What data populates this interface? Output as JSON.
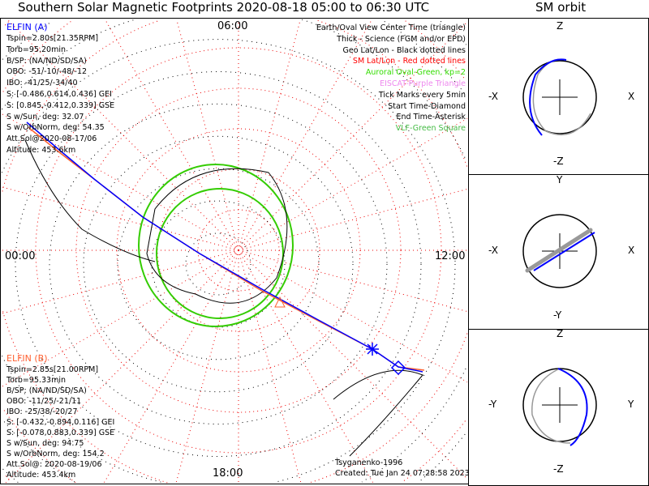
{
  "title": "Southern Solar Magnetic Footprints 2020-08-18 05:00 to 06:30 UTC",
  "orbit_title": "SM orbit",
  "map": {
    "time_top": "06:00",
    "time_left": "00:00",
    "time_right": "12:00",
    "time_bottom": "18:00"
  },
  "elfin_a": {
    "name": "ELFIN (A)",
    "color": "#0000ff",
    "lines": [
      "Tspin=2.80s[21.35RPM]",
      "Torb=95.20min",
      "B/SP: (NA/ND/SD/SA)",
      "OBO: -51/-10/-48/-12",
      "IBO: -41/25/-34/40",
      "S: [-0.486,0.614,0.436] GEI",
      "S: [0.845,-0.412,0.339] GSE",
      "S w/Sun, deg: 32.07",
      "S w/OrbNorm, deg: 54.35",
      "Att.Sol@2020-08-17/06",
      "Altitude: 453.6km"
    ]
  },
  "elfin_b": {
    "name": "ELFIN (B)",
    "color": "#ff6030",
    "lines": [
      "Tspin=2.85s[21.00RPM]",
      "Torb=95.33min",
      "B/SP: (NA/ND/SD/SA)",
      "OBO: -11/25/-21/11",
      "IBO: -25/38/-20/27",
      "S: [-0.432,-0.894,0.116] GEI",
      "S: [-0.078,0.883,0.339] GSE",
      "S w/Sun, deg: 94.75",
      "S w/OrbNorm, deg: 154.2",
      "Att.Sol@: 2020-08-19/06",
      "Altitude: 453.4km"
    ]
  },
  "legend": [
    {
      "text": "Earth/Oval View Center Time (triangle)",
      "color": "#000000"
    },
    {
      "text": "Thick - Science (FGM and/or EPD)",
      "color": "#000000"
    },
    {
      "text": "Geo Lat/Lon - Black dotted lines",
      "color": "#000000"
    },
    {
      "text": "SM Lat/Lon - Red dotted lines",
      "color": "#ff0000"
    },
    {
      "text": "Auroral Oval-Green, kp=2",
      "color": "#33dd00"
    },
    {
      "text": "EISCAT-Purple Triangle",
      "color": "#ee88ee"
    },
    {
      "text": "Tick Marks every 5min",
      "color": "#000000"
    },
    {
      "text": "Start Time-Diamond",
      "color": "#000000"
    },
    {
      "text": "End Time-Asterisk",
      "color": "#000000"
    },
    {
      "text": "VLF-Green Square",
      "color": "#44bb44"
    }
  ],
  "footer": {
    "model": "Tsyganenko-1996",
    "created": "Created: Tue Jan 24 07:28:58 2023"
  },
  "orbit_panels": [
    {
      "top": "Z",
      "bottom": "-Z",
      "left": "-X",
      "right": "X"
    },
    {
      "top": "Y",
      "bottom": "-Y",
      "left": "-X",
      "right": "X"
    },
    {
      "top": "Z",
      "bottom": "-Z",
      "left": "-Y",
      "right": "Y"
    }
  ]
}
